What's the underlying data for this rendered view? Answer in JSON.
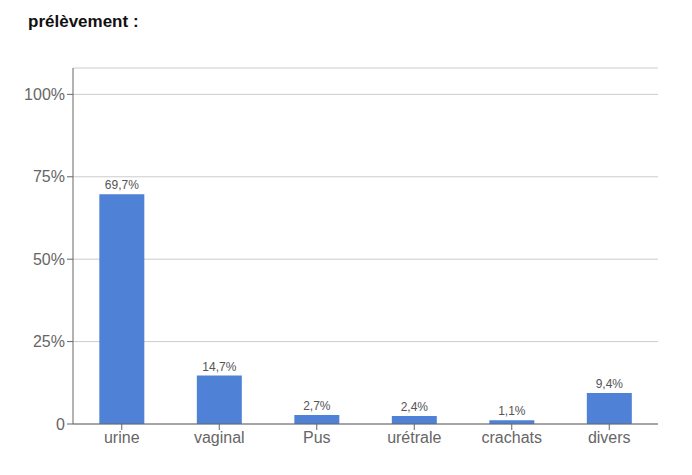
{
  "chart_data": {
    "type": "bar",
    "title": "prélèvement :",
    "categories": [
      "urine",
      "vaginal",
      "Pus",
      "urétrale",
      "crachats",
      "divers"
    ],
    "values": [
      69.7,
      14.7,
      2.7,
      2.4,
      1.1,
      9.4
    ],
    "value_labels": [
      "69,7%",
      "14,7%",
      "2,7%",
      "2,4%",
      "1,1%",
      "9,4%"
    ],
    "color": "#4f81d6",
    "ylim": [
      0,
      108
    ],
    "yticks": [
      0,
      {
        "value": 25,
        "label": "25%"
      },
      {
        "value": 50,
        "label": "50%"
      },
      {
        "value": 75,
        "label": "75%"
      },
      {
        "value": 100,
        "label": "100%"
      }
    ],
    "grid": true
  }
}
